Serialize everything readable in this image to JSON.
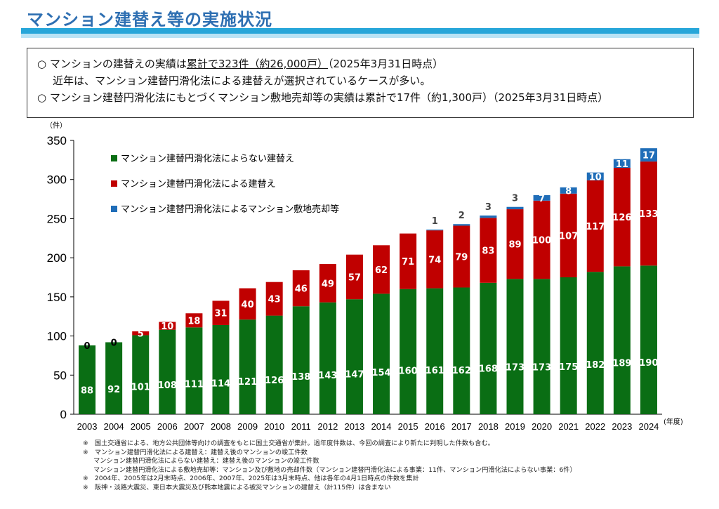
{
  "header": {
    "title": "マンション建替え等の実施状況"
  },
  "summary": {
    "line1_pre": "○ マンションの建替えの実績は",
    "line1_underlined": "累計で323件（約26,000戸）",
    "line1_post": "（2025年3月31日時点）",
    "line2": "近年は、マンション建替円滑化法による建替えが選択されているケースが多い。",
    "line3": "○ マンション建替円滑化法にもとづくマンション敷地売却等の実績は累計で17件（約1,300戸）（2025年3月31日時点）"
  },
  "chart_data": {
    "type": "bar",
    "stacked": true,
    "y_unit_label": "（件）",
    "x_unit_label": "(年度)",
    "ylim": [
      0,
      350
    ],
    "yticks": [
      0,
      50,
      100,
      150,
      200,
      250,
      300,
      350
    ],
    "categories": [
      "2003",
      "2004",
      "2005",
      "2006",
      "2007",
      "2008",
      "2009",
      "2010",
      "2011",
      "2012",
      "2013",
      "2014",
      "2015",
      "2016",
      "2017",
      "2018",
      "2019",
      "2020",
      "2021",
      "2022",
      "2023",
      "2024"
    ],
    "series": [
      {
        "name": "マンション建替円滑化法によらない建替え",
        "color": "#0a6e14",
        "values": [
          88,
          92,
          101,
          108,
          111,
          114,
          121,
          126,
          138,
          143,
          147,
          154,
          160,
          161,
          162,
          168,
          173,
          173,
          175,
          182,
          189,
          190
        ]
      },
      {
        "name": "マンション建替円滑化法による建替え",
        "color": "#c00000",
        "values": [
          0,
          0,
          5,
          10,
          18,
          31,
          40,
          43,
          46,
          49,
          57,
          62,
          71,
          74,
          79,
          83,
          89,
          100,
          107,
          117,
          126,
          133
        ]
      },
      {
        "name": "マンション建替円滑化法によるマンション敷地売却等",
        "color": "#1f6db8",
        "values": [
          null,
          null,
          null,
          null,
          null,
          null,
          null,
          null,
          null,
          null,
          null,
          null,
          null,
          1,
          2,
          3,
          3,
          7,
          8,
          10,
          11,
          17
        ]
      }
    ],
    "legend_position": "top-left",
    "grid": false
  },
  "notes": [
    "※　国土交通省による、地方公共団体等向けの調査をもとに国土交通省が集計。過年度件数は、今回の調査により新たに判明した件数も含む。",
    "※　マンション建替円滑化法による建替え：建替え後のマンションの竣工件数",
    "マンション建替円滑化法によらない建替え：建替え後のマンションの竣工件数",
    "マンション建替円滑化法による敷地売却等：マンション及び敷地の売却件数（マンション建替円滑化法による事業：11件、マンション円滑化法によらない事業：6件）",
    "※　2004年、2005年は2月末時点、2006年、2007年、2025年は3月末時点、他は各年の4月1日時点の件数を集計",
    "※　阪神・淡路大震災、東日本大震災及び熊本地震による被災マンションの建替え（計115件）は含まない"
  ]
}
